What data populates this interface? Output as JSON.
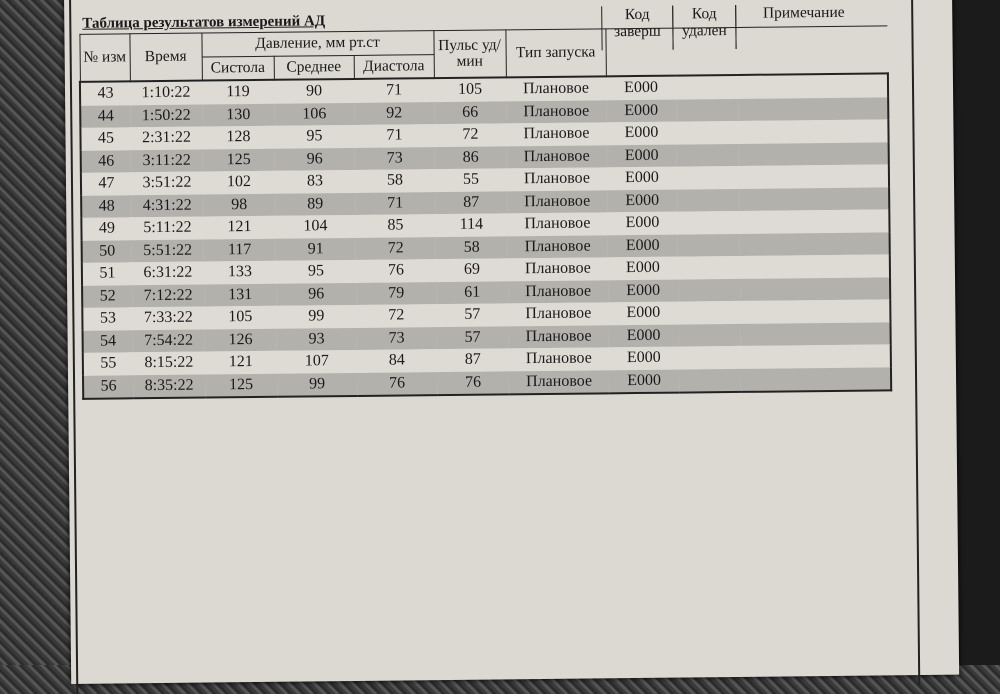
{
  "title": "Таблица результатов измерений АД",
  "headers": {
    "num": "№ изм",
    "time": "Время",
    "pressure": "Давление, мм рт.ст",
    "systole": "Систола",
    "mean": "Среднее",
    "diastole": "Диастола",
    "pulse": "Пульс уд/мин",
    "launch_type": "Тип запуска",
    "end_code": "Код заверш",
    "del_code": "Код удален",
    "note": "Примечание"
  },
  "rows": [
    [
      "43",
      "1:10:22",
      "119",
      "90",
      "71",
      "105",
      "Плановое",
      "E000"
    ],
    [
      "44",
      "1:50:22",
      "130",
      "106",
      "92",
      "66",
      "Плановое",
      "E000"
    ],
    [
      "45",
      "2:31:22",
      "128",
      "95",
      "71",
      "72",
      "Плановое",
      "E000"
    ],
    [
      "46",
      "3:11:22",
      "125",
      "96",
      "73",
      "86",
      "Плановое",
      "E000"
    ],
    [
      "47",
      "3:51:22",
      "102",
      "83",
      "58",
      "55",
      "Плановое",
      "E000"
    ],
    [
      "48",
      "4:31:22",
      "98",
      "89",
      "71",
      "87",
      "Плановое",
      "E000"
    ],
    [
      "49",
      "5:11:22",
      "121",
      "104",
      "85",
      "114",
      "Плановое",
      "E000"
    ],
    [
      "50",
      "5:51:22",
      "117",
      "91",
      "72",
      "58",
      "Плановое",
      "E000"
    ],
    [
      "51",
      "6:31:22",
      "133",
      "95",
      "76",
      "69",
      "Плановое",
      "E000"
    ],
    [
      "52",
      "7:12:22",
      "131",
      "96",
      "79",
      "61",
      "Плановое",
      "E000"
    ],
    [
      "53",
      "7:33:22",
      "105",
      "99",
      "72",
      "57",
      "Плановое",
      "E000"
    ],
    [
      "54",
      "7:54:22",
      "126",
      "93",
      "73",
      "57",
      "Плановое",
      "E000"
    ],
    [
      "55",
      "8:15:22",
      "121",
      "107",
      "84",
      "87",
      "Плановое",
      "E000"
    ],
    [
      "56",
      "8:35:22",
      "125",
      "99",
      "76",
      "76",
      "Плановое",
      "E000"
    ]
  ]
}
